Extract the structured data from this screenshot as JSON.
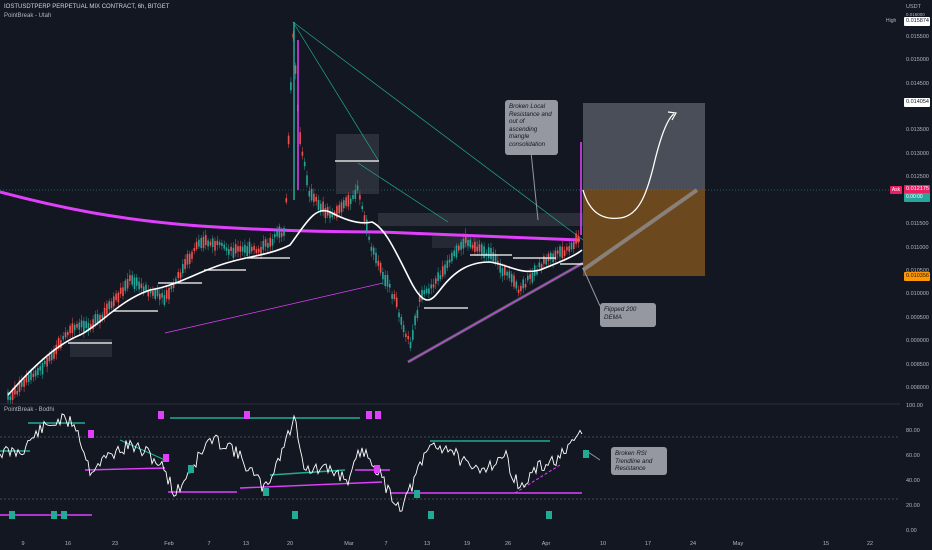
{
  "header": {
    "symbol_line": "IOSTUSDTPERP PERPETUAL MIX CONTRACT, 6h, BITGET",
    "indicator_main": "PointBreak - Utah",
    "indicator_sub": "PointBreak - Bodhi"
  },
  "right_axis": {
    "currency": "USDT",
    "high_label": "High",
    "high_value": "0.015874",
    "ask_label": "Ask",
    "ask_value": "0.012175",
    "ask_sub_value": "0.00:00",
    "tag_target": "0.014054",
    "tag_stop": "0.010356",
    "top_value": "0.016000",
    "price_ticks": [
      "0.015500",
      "0.015000",
      "0.014500",
      "0.013500",
      "0.013000",
      "0.012500",
      "0.012000",
      "0.011500",
      "0.011000",
      "0.010500",
      "0.010000",
      "0.009500",
      "0.009000",
      "0.008500",
      "0.008000"
    ],
    "osc_ticks": [
      "100.00",
      "80.00",
      "60.00",
      "40.00",
      "20.00",
      "0.00"
    ]
  },
  "x_axis": {
    "ticks": [
      "9",
      "16",
      "23",
      "Feb",
      "7",
      "13",
      "20",
      "Mar",
      "7",
      "13",
      "19",
      "26",
      "Apr",
      "10",
      "17",
      "24",
      "May",
      "15",
      "22"
    ]
  },
  "annotations": {
    "note_resistance": "Broken Local Resistance and out of ascending triangle consolidation",
    "note_dema": "Flipped 200 DEMA",
    "note_rsi": "Broken RSI Trendline and Resistance"
  },
  "colors": {
    "background": "#131722",
    "bull": "#26a69a",
    "bear": "#ef5350",
    "dema": "#e040fb",
    "ma": "#ffffff",
    "magenta": "#e91e63",
    "teal": "#22ab94",
    "target_zone": "#787b86",
    "stop_zone": "#8a5a1c"
  }
}
